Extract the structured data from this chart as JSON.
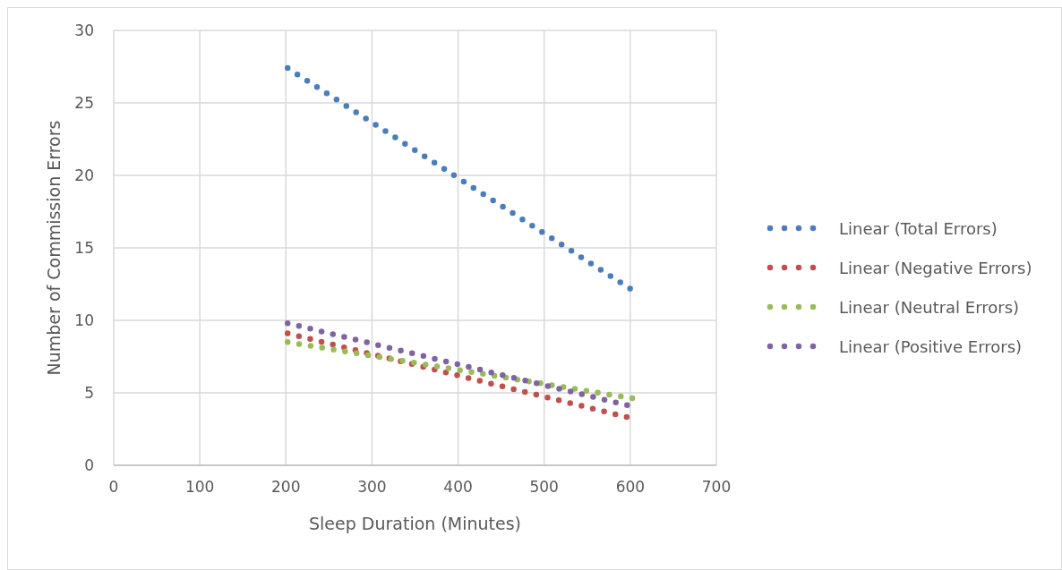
{
  "chart_data": {
    "type": "line",
    "xlabel": "Sleep Duration (Minutes)",
    "ylabel": "Number of Commission Errors",
    "xlim": [
      0,
      700
    ],
    "xticks": [
      0,
      100,
      200,
      300,
      400,
      500,
      600,
      700
    ],
    "ylim": [
      0,
      30
    ],
    "yticks": [
      0,
      5,
      10,
      15,
      20,
      25,
      30
    ],
    "grid": true,
    "legend": "right",
    "line_style": "dotted",
    "marker": "none",
    "series": [
      {
        "name": "Linear (Total Errors)",
        "color": "#4a7ebb",
        "x": [
          202,
          602
        ],
        "values": [
          27.4,
          12.1
        ]
      },
      {
        "name": "Linear (Negative Errors)",
        "color": "#c0504d",
        "x": [
          202,
          598
        ],
        "values": [
          9.1,
          3.3
        ]
      },
      {
        "name": "Linear (Neutral Errors)",
        "color": "#9bbb59",
        "x": [
          202,
          605
        ],
        "values": [
          8.5,
          4.6
        ]
      },
      {
        "name": "Linear (Positive Errors)",
        "color": "#8064a2",
        "x": [
          202,
          600
        ],
        "values": [
          9.8,
          4.1
        ]
      }
    ]
  }
}
